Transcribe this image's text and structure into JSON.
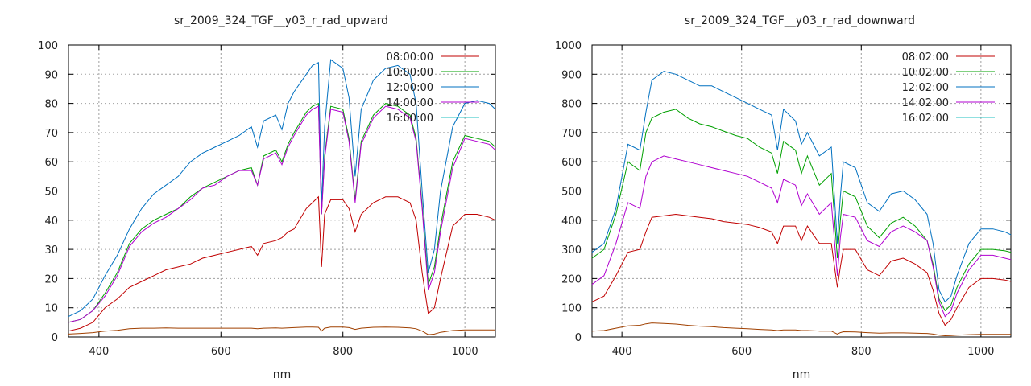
{
  "colors": {
    "08": "#c00000",
    "10": "#00a000",
    "12": "#0070c0",
    "14": "#b000d0",
    "16": "#20c0c0",
    "baseline": "#a04000"
  },
  "chart_data": [
    {
      "type": "line",
      "title": "sr_2009_324_TGF__y03_r_rad_upward",
      "xlabel": "nm",
      "ylabel": "",
      "xlim": [
        350,
        1050
      ],
      "ylim": [
        0,
        100
      ],
      "xticks": [
        400,
        600,
        800,
        1000
      ],
      "yticks": [
        0,
        10,
        20,
        30,
        40,
        50,
        60,
        70,
        80,
        90,
        100
      ],
      "xtick_labels": [
        "400",
        "600",
        "800",
        "1000"
      ],
      "ytick_labels": [
        "0",
        "10",
        "20",
        "30",
        "40",
        "50",
        "60",
        "70",
        "80",
        "90",
        "100"
      ],
      "grid": true,
      "legend_position": "top-right",
      "x": [
        350,
        370,
        390,
        410,
        430,
        450,
        470,
        490,
        510,
        530,
        550,
        570,
        590,
        610,
        630,
        650,
        660,
        670,
        690,
        700,
        710,
        720,
        740,
        750,
        760,
        765,
        770,
        780,
        800,
        810,
        820,
        830,
        850,
        870,
        890,
        910,
        920,
        930,
        940,
        950,
        960,
        980,
        1000,
        1020,
        1040,
        1050
      ],
      "series": [
        {
          "name": "08:00:00",
          "color_key": "08",
          "values": [
            2,
            3,
            5,
            10,
            13,
            17,
            19,
            21,
            23,
            24,
            25,
            27,
            28,
            29,
            30,
            31,
            28,
            32,
            33,
            34,
            36,
            37,
            44,
            46,
            48,
            24,
            42,
            47,
            47,
            44,
            36,
            42,
            46,
            48,
            48,
            46,
            40,
            22,
            8,
            10,
            20,
            38,
            42,
            42,
            41,
            40
          ]
        },
        {
          "name": "10:00:00",
          "color_key": "10",
          "values": [
            5,
            6,
            9,
            15,
            22,
            32,
            37,
            40,
            42,
            44,
            48,
            51,
            53,
            55,
            57,
            58,
            52,
            62,
            64,
            60,
            66,
            70,
            77,
            79,
            80,
            42,
            62,
            79,
            78,
            68,
            47,
            67,
            76,
            80,
            79,
            76,
            68,
            45,
            18,
            24,
            38,
            60,
            69,
            68,
            67,
            65
          ]
        },
        {
          "name": "12:00:00",
          "color_key": "12",
          "values": [
            7,
            9,
            13,
            21,
            28,
            37,
            44,
            49,
            52,
            55,
            60,
            63,
            65,
            67,
            69,
            72,
            65,
            74,
            76,
            71,
            80,
            84,
            90,
            93,
            94,
            45,
            72,
            95,
            92,
            82,
            55,
            78,
            88,
            92,
            93,
            90,
            80,
            50,
            22,
            30,
            50,
            72,
            80,
            81,
            80,
            78
          ]
        },
        {
          "name": "14:00:00",
          "color_key": "14",
          "values": [
            5,
            6,
            9,
            14,
            21,
            31,
            36,
            39,
            41,
            44,
            47,
            51,
            52,
            55,
            57,
            57,
            52,
            61,
            63,
            59,
            65,
            69,
            76,
            78,
            79,
            42,
            61,
            78,
            77,
            67,
            46,
            66,
            75,
            79,
            78,
            75,
            67,
            44,
            16,
            22,
            36,
            58,
            68,
            67,
            66,
            64
          ]
        },
        {
          "name": "16:00:00",
          "color_key": "16",
          "values": [
            null,
            null,
            null,
            null,
            null,
            null,
            null,
            null,
            null,
            null,
            null,
            null,
            null,
            null,
            null,
            null,
            null,
            null,
            null,
            null,
            null,
            null,
            null,
            null,
            null,
            null,
            null,
            null,
            null,
            null,
            null,
            null,
            null,
            null,
            null,
            null,
            null,
            null,
            null,
            null,
            null,
            null,
            null,
            null,
            null,
            null
          ]
        },
        {
          "name": "",
          "color_key": "baseline",
          "values": [
            1,
            1.2,
            1.5,
            2,
            2.3,
            2.8,
            3,
            3,
            3.1,
            3,
            3,
            3,
            3,
            3,
            3,
            3,
            2.8,
            3,
            3.1,
            3,
            3.1,
            3.2,
            3.4,
            3.4,
            3.3,
            2,
            3,
            3.4,
            3.4,
            3.2,
            2.6,
            3,
            3.3,
            3.4,
            3.3,
            3.1,
            2.8,
            2,
            0.8,
            1,
            1.6,
            2.2,
            2.4,
            2.4,
            2.4,
            2.4
          ]
        }
      ]
    },
    {
      "type": "line",
      "title": "sr_2009_324_TGF__y03_r_rad_downward",
      "xlabel": "nm",
      "ylabel": "",
      "xlim": [
        350,
        1050
      ],
      "ylim": [
        0,
        1000
      ],
      "xticks": [
        400,
        600,
        800,
        1000
      ],
      "yticks": [
        0,
        100,
        200,
        300,
        400,
        500,
        600,
        700,
        800,
        900,
        1000
      ],
      "xtick_labels": [
        "400",
        "600",
        "800",
        "1000"
      ],
      "ytick_labels": [
        "0",
        "100",
        "200",
        "300",
        "400",
        "500",
        "600",
        "700",
        "800",
        "900",
        "1000"
      ],
      "grid": true,
      "legend_position": "top-right",
      "x": [
        350,
        370,
        390,
        410,
        430,
        440,
        450,
        470,
        490,
        510,
        530,
        550,
        570,
        590,
        610,
        630,
        650,
        660,
        670,
        690,
        700,
        710,
        730,
        750,
        760,
        765,
        770,
        790,
        810,
        830,
        850,
        870,
        890,
        910,
        920,
        930,
        940,
        950,
        960,
        980,
        1000,
        1020,
        1040,
        1050
      ],
      "series": [
        {
          "name": "08:02:00",
          "color_key": "08",
          "values": [
            120,
            140,
            210,
            290,
            300,
            360,
            410,
            415,
            420,
            415,
            410,
            405,
            395,
            390,
            385,
            375,
            360,
            320,
            380,
            380,
            330,
            380,
            320,
            320,
            170,
            240,
            300,
            300,
            230,
            210,
            260,
            270,
            250,
            220,
            160,
            80,
            40,
            60,
            100,
            170,
            200,
            200,
            195,
            190
          ]
        },
        {
          "name": "10:02:00",
          "color_key": "10",
          "values": [
            270,
            300,
            420,
            600,
            570,
            700,
            750,
            770,
            780,
            750,
            730,
            720,
            705,
            690,
            680,
            650,
            630,
            560,
            670,
            640,
            560,
            620,
            520,
            560,
            270,
            400,
            500,
            480,
            380,
            340,
            390,
            410,
            380,
            330,
            250,
            130,
            90,
            110,
            170,
            250,
            300,
            300,
            295,
            290
          ]
        },
        {
          "name": "12:02:00",
          "color_key": "12",
          "values": [
            290,
            320,
            440,
            660,
            640,
            770,
            880,
            910,
            900,
            880,
            860,
            860,
            840,
            820,
            800,
            780,
            760,
            640,
            780,
            740,
            660,
            700,
            620,
            650,
            320,
            480,
            600,
            580,
            460,
            430,
            490,
            500,
            470,
            420,
            320,
            160,
            120,
            140,
            210,
            320,
            370,
            370,
            360,
            350
          ]
        },
        {
          "name": "14:02:00",
          "color_key": "14",
          "values": [
            180,
            210,
            320,
            460,
            440,
            550,
            600,
            620,
            610,
            600,
            590,
            580,
            570,
            560,
            550,
            530,
            510,
            460,
            540,
            520,
            450,
            490,
            420,
            460,
            210,
            340,
            420,
            410,
            330,
            310,
            360,
            380,
            360,
            330,
            240,
            120,
            70,
            90,
            150,
            230,
            280,
            280,
            270,
            265
          ]
        },
        {
          "name": "16:02:00",
          "color_key": "16",
          "values": [
            null,
            null,
            null,
            null,
            null,
            null,
            null,
            null,
            null,
            null,
            null,
            null,
            null,
            null,
            null,
            null,
            null,
            null,
            null,
            null,
            null,
            null,
            null,
            null,
            null,
            null,
            null,
            null,
            null,
            null,
            null,
            null,
            null,
            null,
            null,
            null,
            null,
            null,
            null,
            null,
            null,
            null,
            null,
            null
          ]
        },
        {
          "name": "",
          "color_key": "baseline",
          "values": [
            20,
            22,
            30,
            38,
            40,
            45,
            48,
            46,
            44,
            40,
            37,
            35,
            32,
            30,
            28,
            26,
            24,
            22,
            24,
            24,
            22,
            22,
            20,
            20,
            10,
            15,
            18,
            17,
            15,
            13,
            14,
            14,
            13,
            12,
            10,
            6,
            4,
            5,
            6,
            8,
            9,
            9,
            9,
            9
          ]
        }
      ]
    }
  ]
}
